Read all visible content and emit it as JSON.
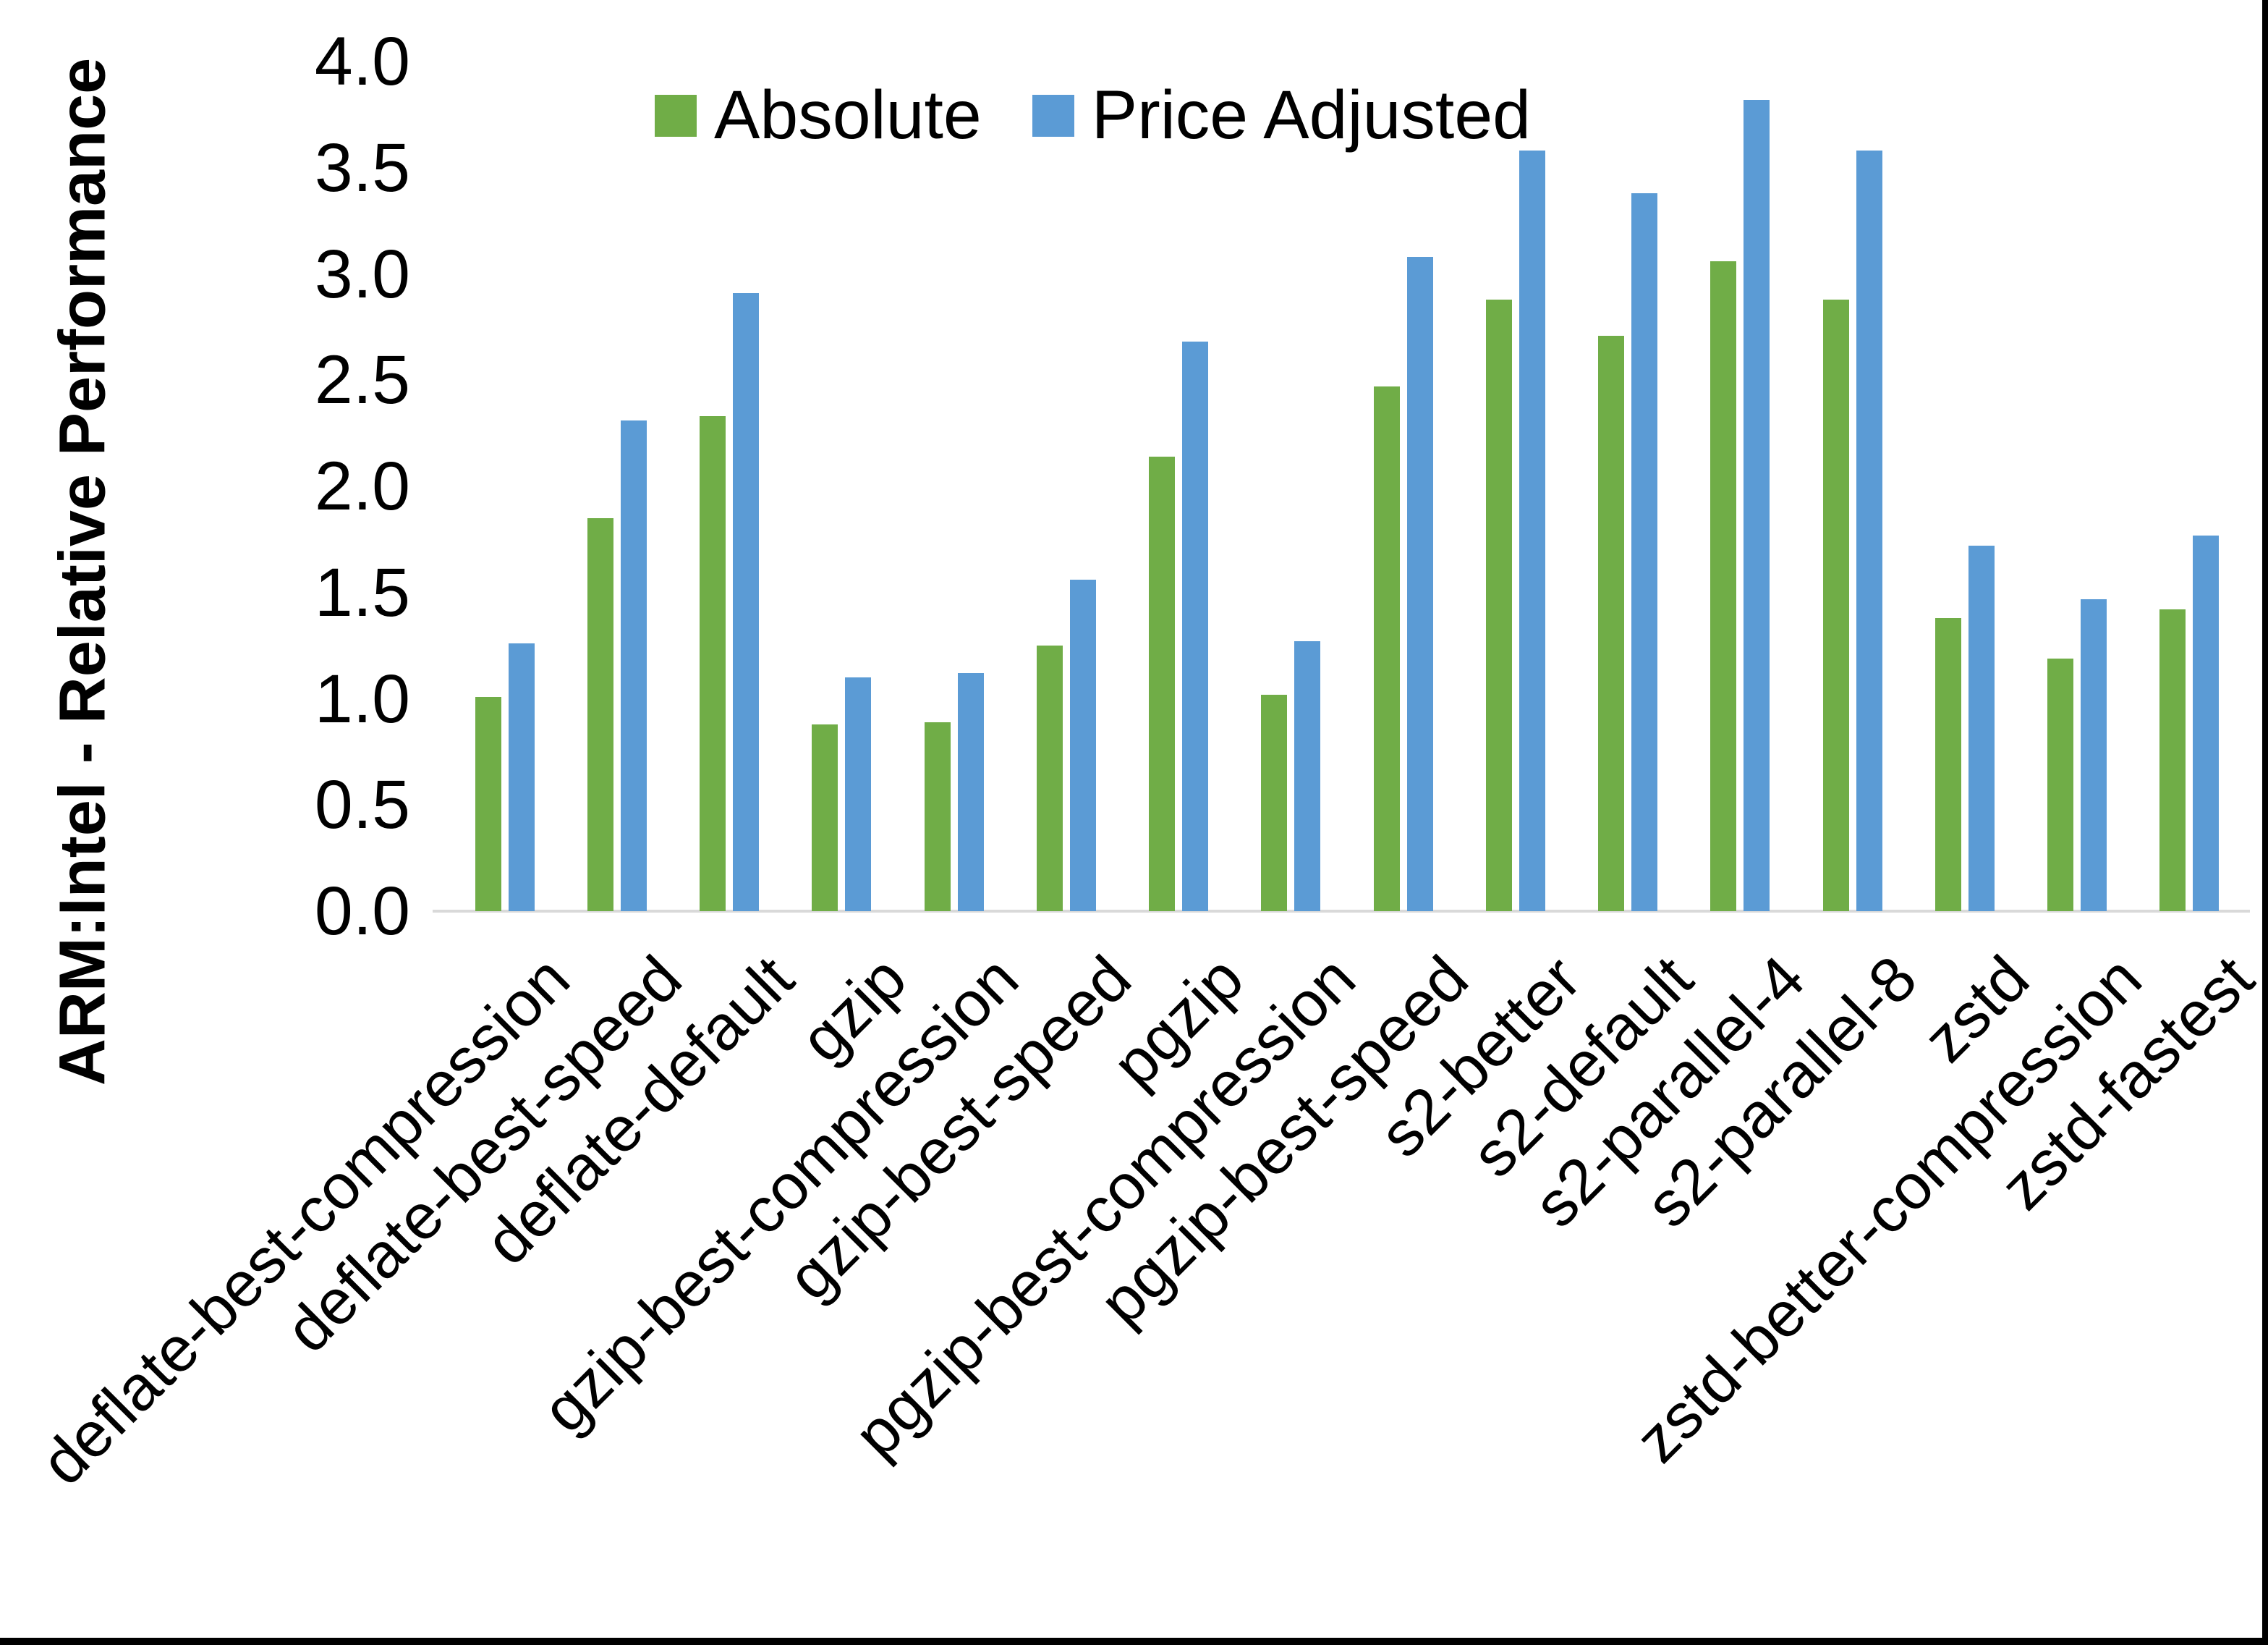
{
  "frame": {
    "background": "#FFFFFF",
    "border_color": "#000000",
    "baseline_color": "#D9D9D9"
  },
  "y_axis": {
    "title": "ARM:Intel - Relative Performance",
    "min": 0.0,
    "max": 4.0,
    "step": 0.5,
    "tick_labels": [
      "0.0",
      "0.5",
      "1.0",
      "1.5",
      "2.0",
      "2.5",
      "3.0",
      "3.5",
      "4.0"
    ]
  },
  "legend": {
    "items": [
      {
        "label": "Absolute",
        "color": "#70AD47"
      },
      {
        "label": "Price Adjusted",
        "color": "#5B9BD5"
      }
    ],
    "position": "top-center"
  },
  "chart_data": {
    "type": "bar",
    "title": "",
    "xlabel": "",
    "ylabel": "ARM:Intel - Relative Performance",
    "ylim": [
      0,
      4
    ],
    "grid": "off",
    "legend_position": "top-center",
    "categories": [
      "deflate-best-compression",
      "deflate-best-speed",
      "deflate-default",
      "gzip",
      "gzip-best-compression",
      "gzip-best-speed",
      "pgzip",
      "pgzip-best-compression",
      "pgzip-best-speed",
      "s2-better",
      "s2-default",
      "s2-parallel-4",
      "s2-parallel-8",
      "zstd",
      "zstd-better-compression",
      "zstd-fastest"
    ],
    "series": [
      {
        "name": "Absolute",
        "color": "#70AD47",
        "values": [
          1.01,
          1.85,
          2.33,
          0.88,
          0.89,
          1.25,
          2.14,
          1.02,
          2.47,
          2.88,
          2.71,
          3.06,
          2.88,
          1.38,
          1.19,
          1.42
        ]
      },
      {
        "name": "Price Adjusted",
        "color": "#5B9BD5",
        "values": [
          1.26,
          2.31,
          2.91,
          1.1,
          1.12,
          1.56,
          2.68,
          1.27,
          3.08,
          3.58,
          3.38,
          3.82,
          3.58,
          1.72,
          1.47,
          1.77
        ]
      }
    ]
  }
}
